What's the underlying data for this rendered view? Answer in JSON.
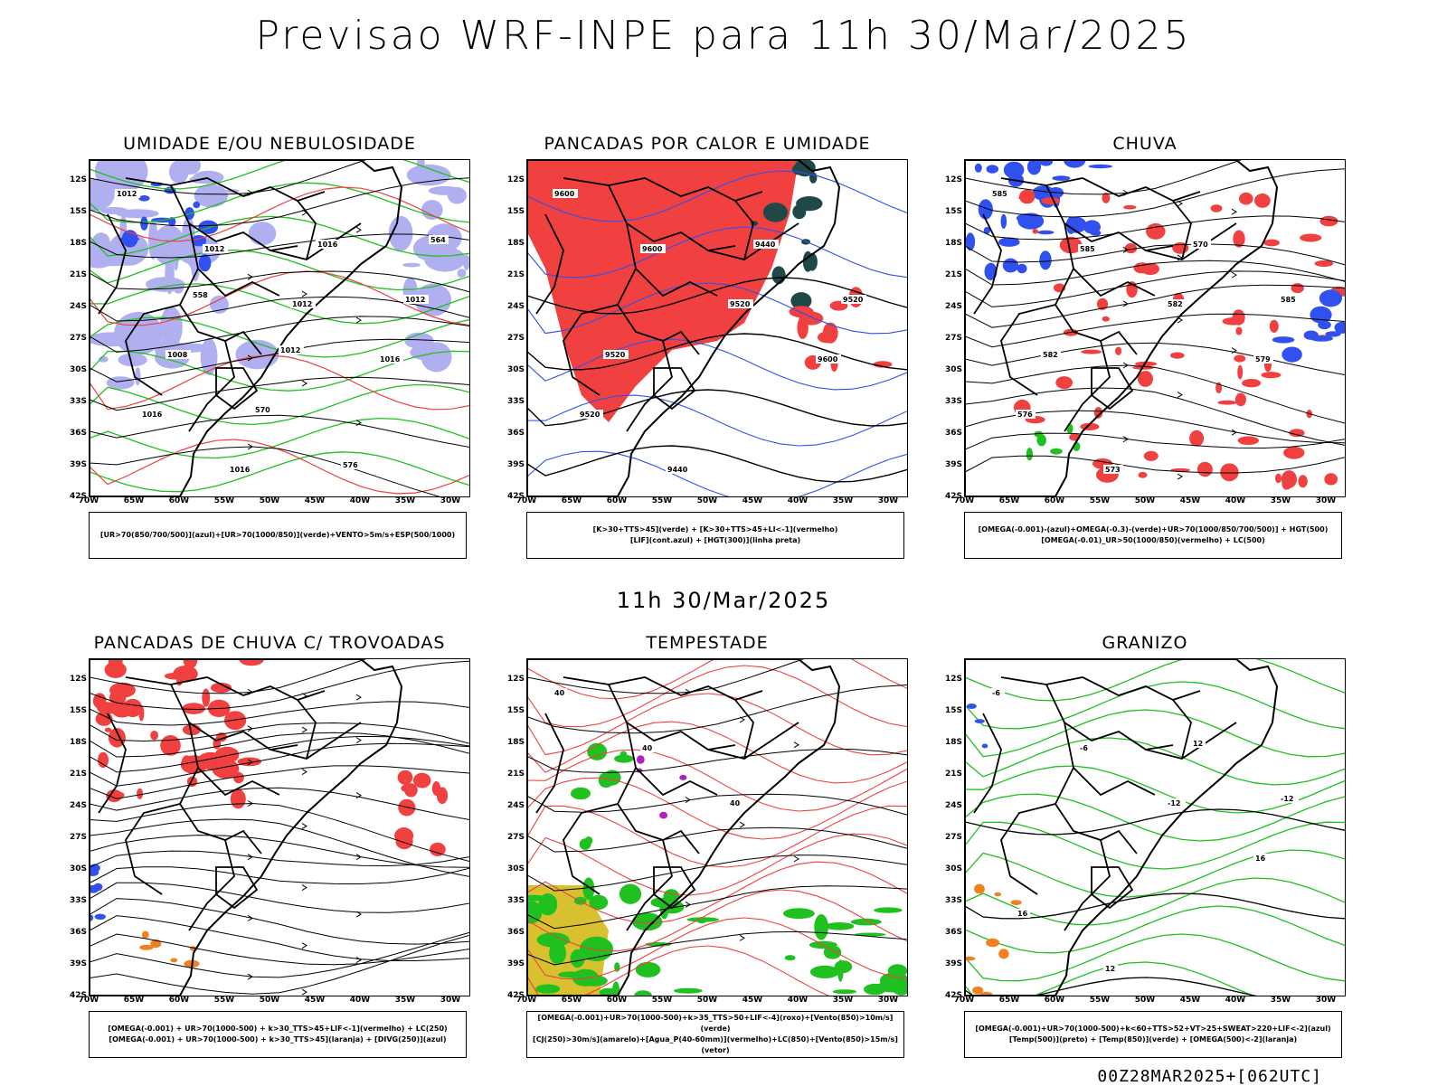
{
  "title": "Previsao WRF-INPE  para 11h 30/Mar/2025",
  "mid_title": "11h 30/Mar/2025",
  "footer": "00Z28MAR2025+[062UTC]",
  "lat_ticks": [
    "12S",
    "15S",
    "18S",
    "21S",
    "24S",
    "27S",
    "30S",
    "33S",
    "36S",
    "39S",
    "42S"
  ],
  "lon_ticks": [
    "70W",
    "65W",
    "60W",
    "55W",
    "50W",
    "45W",
    "40W",
    "35W",
    "30W"
  ],
  "colors": {
    "red": "#f04040",
    "blue": "#3050f0",
    "green": "#20c020",
    "lavender": "#b0b0f0",
    "dark": "#204848",
    "yellow": "#d8c030",
    "orange": "#f08020",
    "purple": "#b020c0"
  },
  "panels": [
    {
      "title": "UMIDADE E/OU NEBULOSIDADE",
      "legend": [
        "[UR>70(850/700/500)](azul)+[UR>70(1000/850)](verde)+VENTO>5m/s+ESP(500/1000)"
      ],
      "contour_labels": [
        "1012",
        "1012",
        "1012",
        "1016",
        "1016",
        "1016",
        "1016",
        "1012",
        "1008",
        "570",
        "576",
        "564",
        "558",
        "1012"
      ]
    },
    {
      "title": "PANCADAS POR CALOR E UMIDADE",
      "legend": [
        "[K>30+TTS>45](verde) + [K>30+TTS>45+LI<-1](vermelho)",
        "[LIF](cont.azul) + [HGT(300)](linha preta)"
      ],
      "contour_labels": [
        "9600",
        "9600",
        "9520",
        "9600",
        "9520",
        "9440",
        "9440",
        "9520",
        "9520"
      ]
    },
    {
      "title": "CHUVA",
      "legend": [
        "[OMEGA(-0.001)-(azul)+OMEGA(-0.3)-(verde)+UR>70(1000/850/700/500)] + HGT(500)",
        "[OMEGA(-0.01)_UR>50(1000/850)(vermelho) + LC(500)"
      ],
      "contour_labels": [
        "585",
        "585",
        "582",
        "579",
        "576",
        "573",
        "570",
        "585",
        "582"
      ]
    },
    {
      "title": "PANCADAS DE CHUVA C/ TROVOADAS",
      "legend": [
        "[OMEGA(-0.001) + UR>70(1000-500) + k>30_TTS>45+LIF<-1](vermelho) + LC(250)",
        "[OMEGA(-0.001) + UR>70(1000-500) + k>30_TTS>45](laranja) + [DIVG(250)](azul)"
      ],
      "contour_labels": []
    },
    {
      "title": "TEMPESTADE",
      "legend": [
        "[OMEGA(-0.001)+UR>70(1000-500)+k>35_TTS>50+LIF<-4](roxo)+[Vento(850)>10m/s](verde)",
        "[CJ(250)>30m/s](amarelo)+[Agua_P(40-60mm)](vermelho)+LC(850)+[Vento(850)>15m/s](vetor)"
      ],
      "contour_labels": [
        "40",
        "40",
        "40"
      ]
    },
    {
      "title": "GRANIZO",
      "legend": [
        "[OMEGA(-0.001)+UR>70(1000-500)+k<60+TTS>52+VT>25+SWEAT>220+LIF<-2](azul)",
        "[Temp(500)](preto) + [Temp(850)](verde) + [OMEGA(500)<-2](laranja)"
      ],
      "contour_labels": [
        "-6",
        "-6",
        "-12",
        "16",
        "16",
        "12",
        "12",
        "-12"
      ]
    }
  ]
}
